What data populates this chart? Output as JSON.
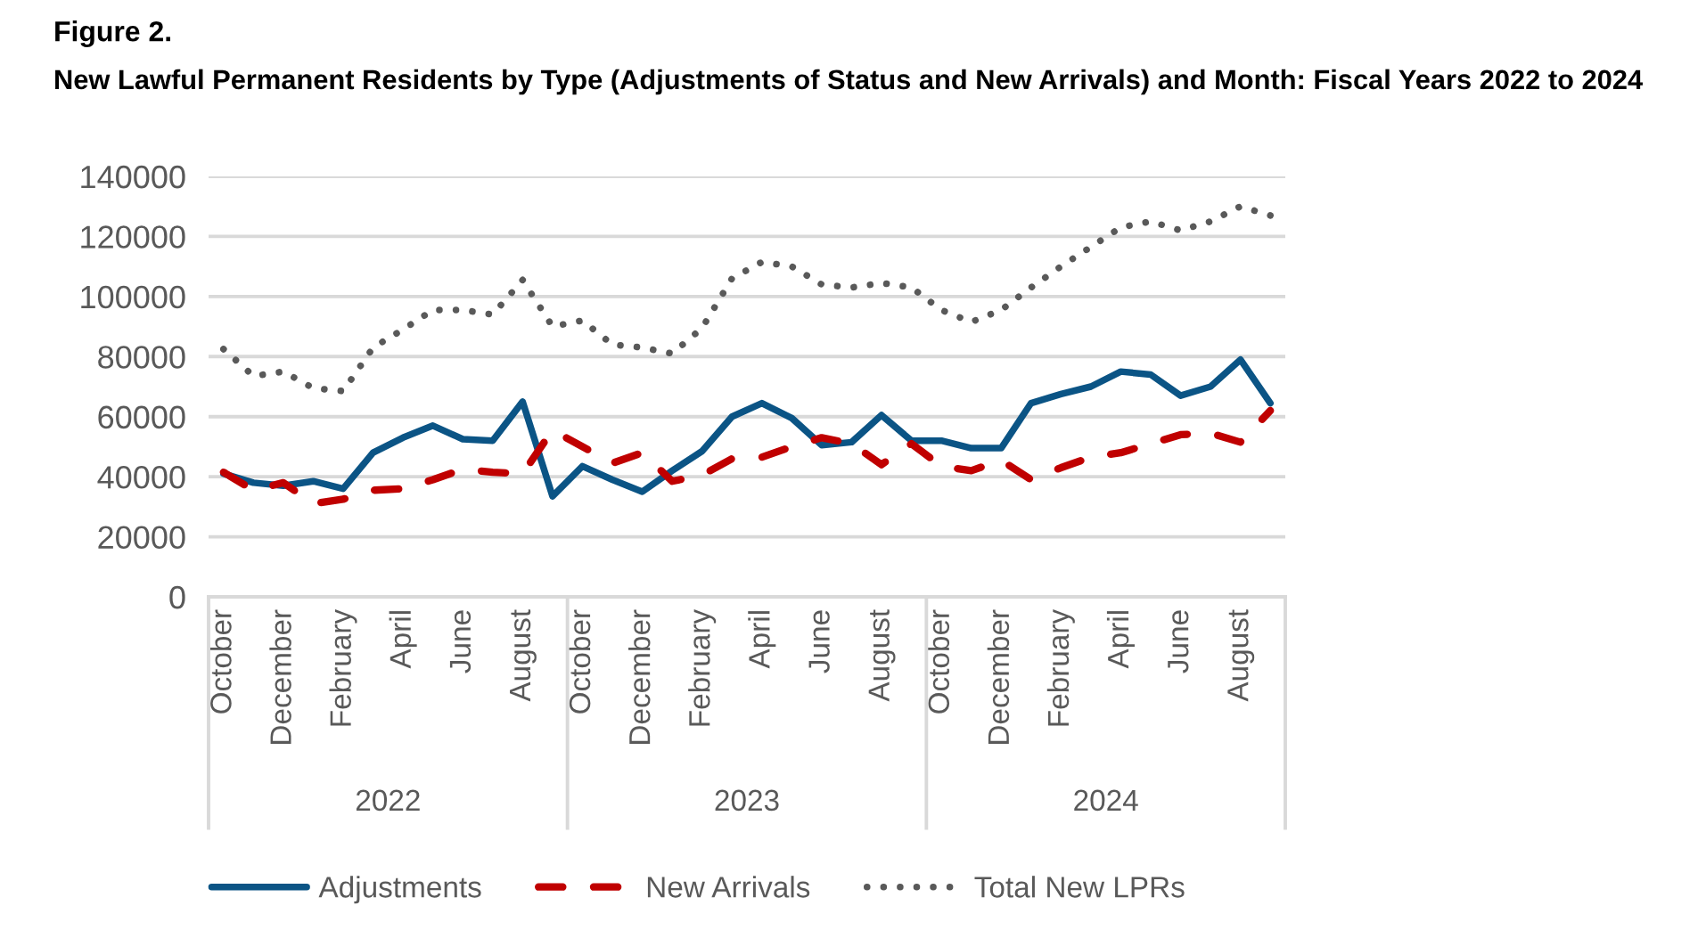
{
  "chart_data": {
    "type": "line",
    "title": "Figure 2.",
    "subtitle": "New Lawful Permanent Residents by Type (Adjustments of Status and New Arrivals) and Month: Fiscal Years 2022 to 2024",
    "categories": [
      "October",
      null,
      "December",
      null,
      "February",
      null,
      "April",
      null,
      "June",
      null,
      "August",
      null,
      "October",
      null,
      "December",
      null,
      "February",
      null,
      "April",
      null,
      "June",
      null,
      "August",
      null,
      "October",
      null,
      "December",
      null,
      "February",
      null,
      "April",
      null,
      "June",
      null,
      "August",
      null
    ],
    "series": [
      {
        "name": "Adjustments",
        "color": "#0b5485",
        "line_style": "solid",
        "values": [
          41000,
          38000,
          37000,
          38500,
          36000,
          48000,
          53000,
          57000,
          52500,
          52000,
          65000,
          33500,
          43500,
          39000,
          35000,
          42000,
          48500,
          60000,
          64500,
          59500,
          50500,
          51500,
          60500,
          52000,
          52000,
          49500,
          49500,
          64500,
          67500,
          70000,
          75000,
          74000,
          67000,
          70000,
          79000,
          64500
        ]
      },
      {
        "name": "New Arrivals",
        "color": "#c00000",
        "line_style": "dashed",
        "values": [
          41500,
          35500,
          38000,
          31000,
          32500,
          35500,
          36000,
          39000,
          42500,
          41500,
          41000,
          55500,
          50000,
          44500,
          48000,
          38500,
          40500,
          46000,
          46500,
          50000,
          53000,
          51000,
          44000,
          51000,
          43500,
          42000,
          45500,
          39000,
          43000,
          46500,
          48000,
          51000,
          54000,
          54500,
          51500,
          62000
        ]
      },
      {
        "name": "Total New LPRs",
        "color": "#595959",
        "line_style": "dotted",
        "values": [
          82500,
          73500,
          75000,
          69500,
          68500,
          83000,
          89000,
          95500,
          95500,
          94000,
          105500,
          90000,
          92000,
          84000,
          83000,
          81000,
          89500,
          106000,
          111500,
          110000,
          104000,
          103000,
          104500,
          103000,
          95500,
          91500,
          95500,
          103000,
          110000,
          116500,
          123000,
          125000,
          122000,
          125000,
          130000,
          127000
        ]
      }
    ],
    "ylim": [
      0,
      140000
    ],
    "yticks": [
      0,
      20000,
      40000,
      60000,
      80000,
      100000,
      120000,
      140000
    ],
    "grid": "y",
    "legend": "bottom",
    "annotations": [
      "2022",
      "2023",
      "2024"
    ]
  }
}
